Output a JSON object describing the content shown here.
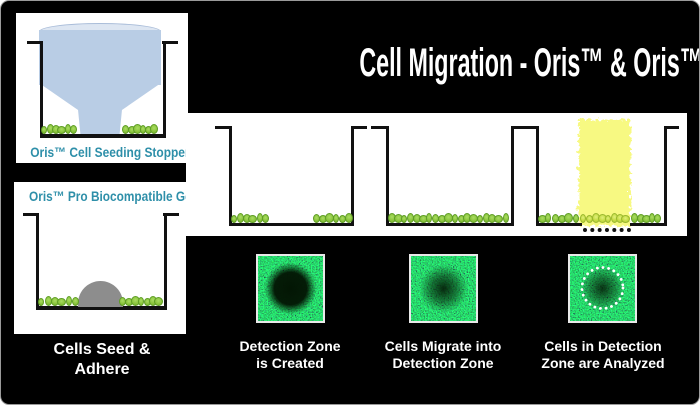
{
  "title": "Cell Migration - Oris™ & Oris™ Pro Assays",
  "left_column": {
    "stopper_panel_label": "Oris™ Cell Seeding Stoppers",
    "gel_panel_label": "Oris™ Pro Biocompatible Gel",
    "caption_line1": "Cells Seed &",
    "caption_line2": "Adhere"
  },
  "steps": [
    {
      "caption_line1": "Detection Zone",
      "caption_line2": "is Created"
    },
    {
      "caption_line1": "Cells Migrate into",
      "caption_line2": "Detection Zone"
    },
    {
      "caption_line1": "Cells in Detection",
      "caption_line2": "Zone are Analyzed"
    }
  ],
  "icons": {
    "stopper": "cell-seeding-stopper-icon",
    "gel_dome": "biocompatible-gel-dome-icon",
    "cells": "cell-dot-icon",
    "detection_zone_highlight": "yellow-highlight-zone",
    "analysis_ring": "dotted-detection-ring-icon"
  },
  "colors": {
    "background": "#000000",
    "panel_white": "#ffffff",
    "label_teal": "#2e8fa9",
    "title_white": "#ffffff",
    "cell_green": "#8dc63f",
    "cell_green_stroke": "#5f9e26",
    "cell_yellow_green": "#c6dc45",
    "highlight_yellow": "#f7f982",
    "stopper_blue": "#b9cde5",
    "gel_gray": "#8d8d8d",
    "microscopy_green": "#0a3f0c",
    "outline_black": "#111111"
  }
}
